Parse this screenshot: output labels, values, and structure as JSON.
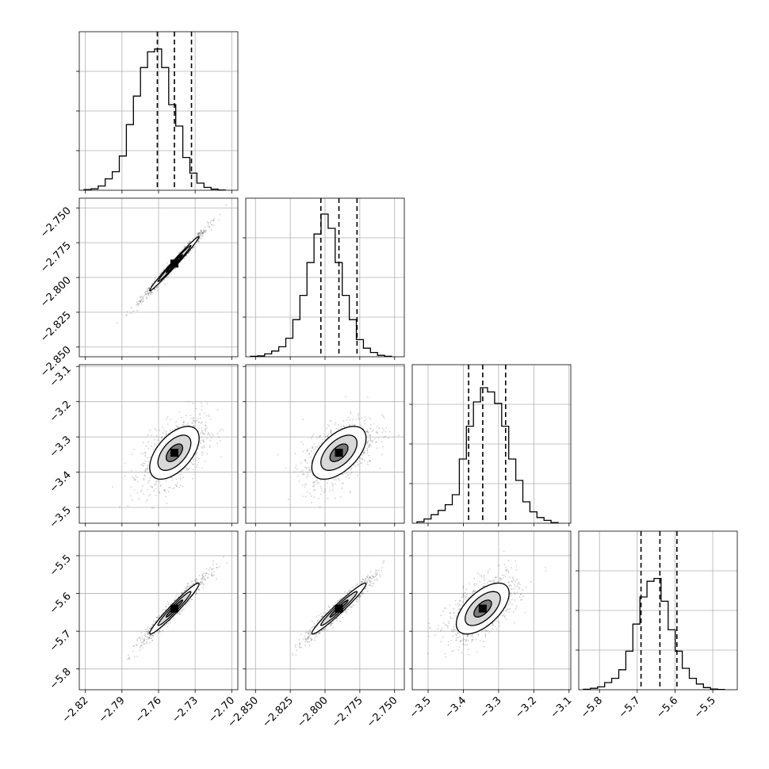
{
  "chart_data": {
    "type": "corner",
    "grid": true,
    "parameters": [
      {
        "range": [
          -2.825,
          -2.695
        ],
        "ticks": [
          -2.82,
          -2.79,
          -2.76,
          -2.73,
          -2.7
        ],
        "tick_labels": [
          "−2.82",
          "−2.79",
          "−2.76",
          "−2.73",
          "−2.70"
        ],
        "quantiles": [
          -2.761,
          -2.747,
          -2.733
        ]
      },
      {
        "range": [
          -2.857,
          -2.743
        ],
        "ticks": [
          -2.85,
          -2.825,
          -2.8,
          -2.775,
          -2.75
        ],
        "tick_labels": [
          "−2.850",
          "−2.825",
          "−2.800",
          "−2.775",
          "−2.750"
        ],
        "quantiles": [
          -2.803,
          -2.79,
          -2.777
        ]
      },
      {
        "range": [
          -3.545,
          -3.095
        ],
        "ticks": [
          -3.5,
          -3.4,
          -3.3,
          -3.2,
          -3.1
        ],
        "tick_labels": [
          "−3.5",
          "−3.4",
          "−3.3",
          "−3.2",
          "−3.1"
        ],
        "quantiles": [
          -3.385,
          -3.345,
          -3.28
        ]
      },
      {
        "range": [
          -5.855,
          -5.435
        ],
        "ticks": [
          -5.8,
          -5.7,
          -5.6,
          -5.5
        ],
        "tick_labels": [
          "−5.8",
          "−5.7",
          "−5.6",
          "−5.5"
        ],
        "quantiles": [
          -5.69,
          -5.64,
          -5.595
        ]
      }
    ],
    "histograms": [
      [
        0.005,
        0.01,
        0.03,
        0.08,
        0.13,
        0.24,
        0.46,
        0.66,
        0.86,
        0.97,
        0.99,
        0.86,
        0.6,
        0.45,
        0.23,
        0.12,
        0.05,
        0.02,
        0.008,
        0.002
      ],
      [
        0.003,
        0.006,
        0.02,
        0.04,
        0.07,
        0.13,
        0.26,
        0.43,
        0.66,
        0.86,
        1.0,
        0.9,
        0.66,
        0.43,
        0.26,
        0.12,
        0.06,
        0.03,
        0.01,
        0.003
      ],
      [
        0.01,
        0.03,
        0.06,
        0.09,
        0.13,
        0.2,
        0.45,
        0.68,
        0.85,
        0.95,
        0.92,
        0.84,
        0.68,
        0.45,
        0.3,
        0.15,
        0.08,
        0.04,
        0.02,
        0.005
      ],
      [
        0.003,
        0.01,
        0.02,
        0.05,
        0.08,
        0.14,
        0.27,
        0.46,
        0.65,
        0.76,
        0.78,
        0.62,
        0.42,
        0.27,
        0.15,
        0.08,
        0.04,
        0.015,
        0.005,
        0.002
      ]
    ],
    "correlations": [
      [
        null,
        null,
        null,
        null
      ],
      [
        0.99,
        null,
        null,
        null
      ],
      [
        0.55,
        0.55,
        null,
        null
      ],
      [
        0.97,
        0.97,
        0.6,
        null
      ]
    ],
    "sigmas": [
      0.0135,
      0.013,
      0.05,
      0.045
    ],
    "contour_levels": [
      0.5,
      1.0,
      1.5
    ]
  },
  "colors": {
    "contour": "#000000",
    "points": "#000000",
    "grid": "#b0b0b0",
    "quantile": "#000000"
  }
}
